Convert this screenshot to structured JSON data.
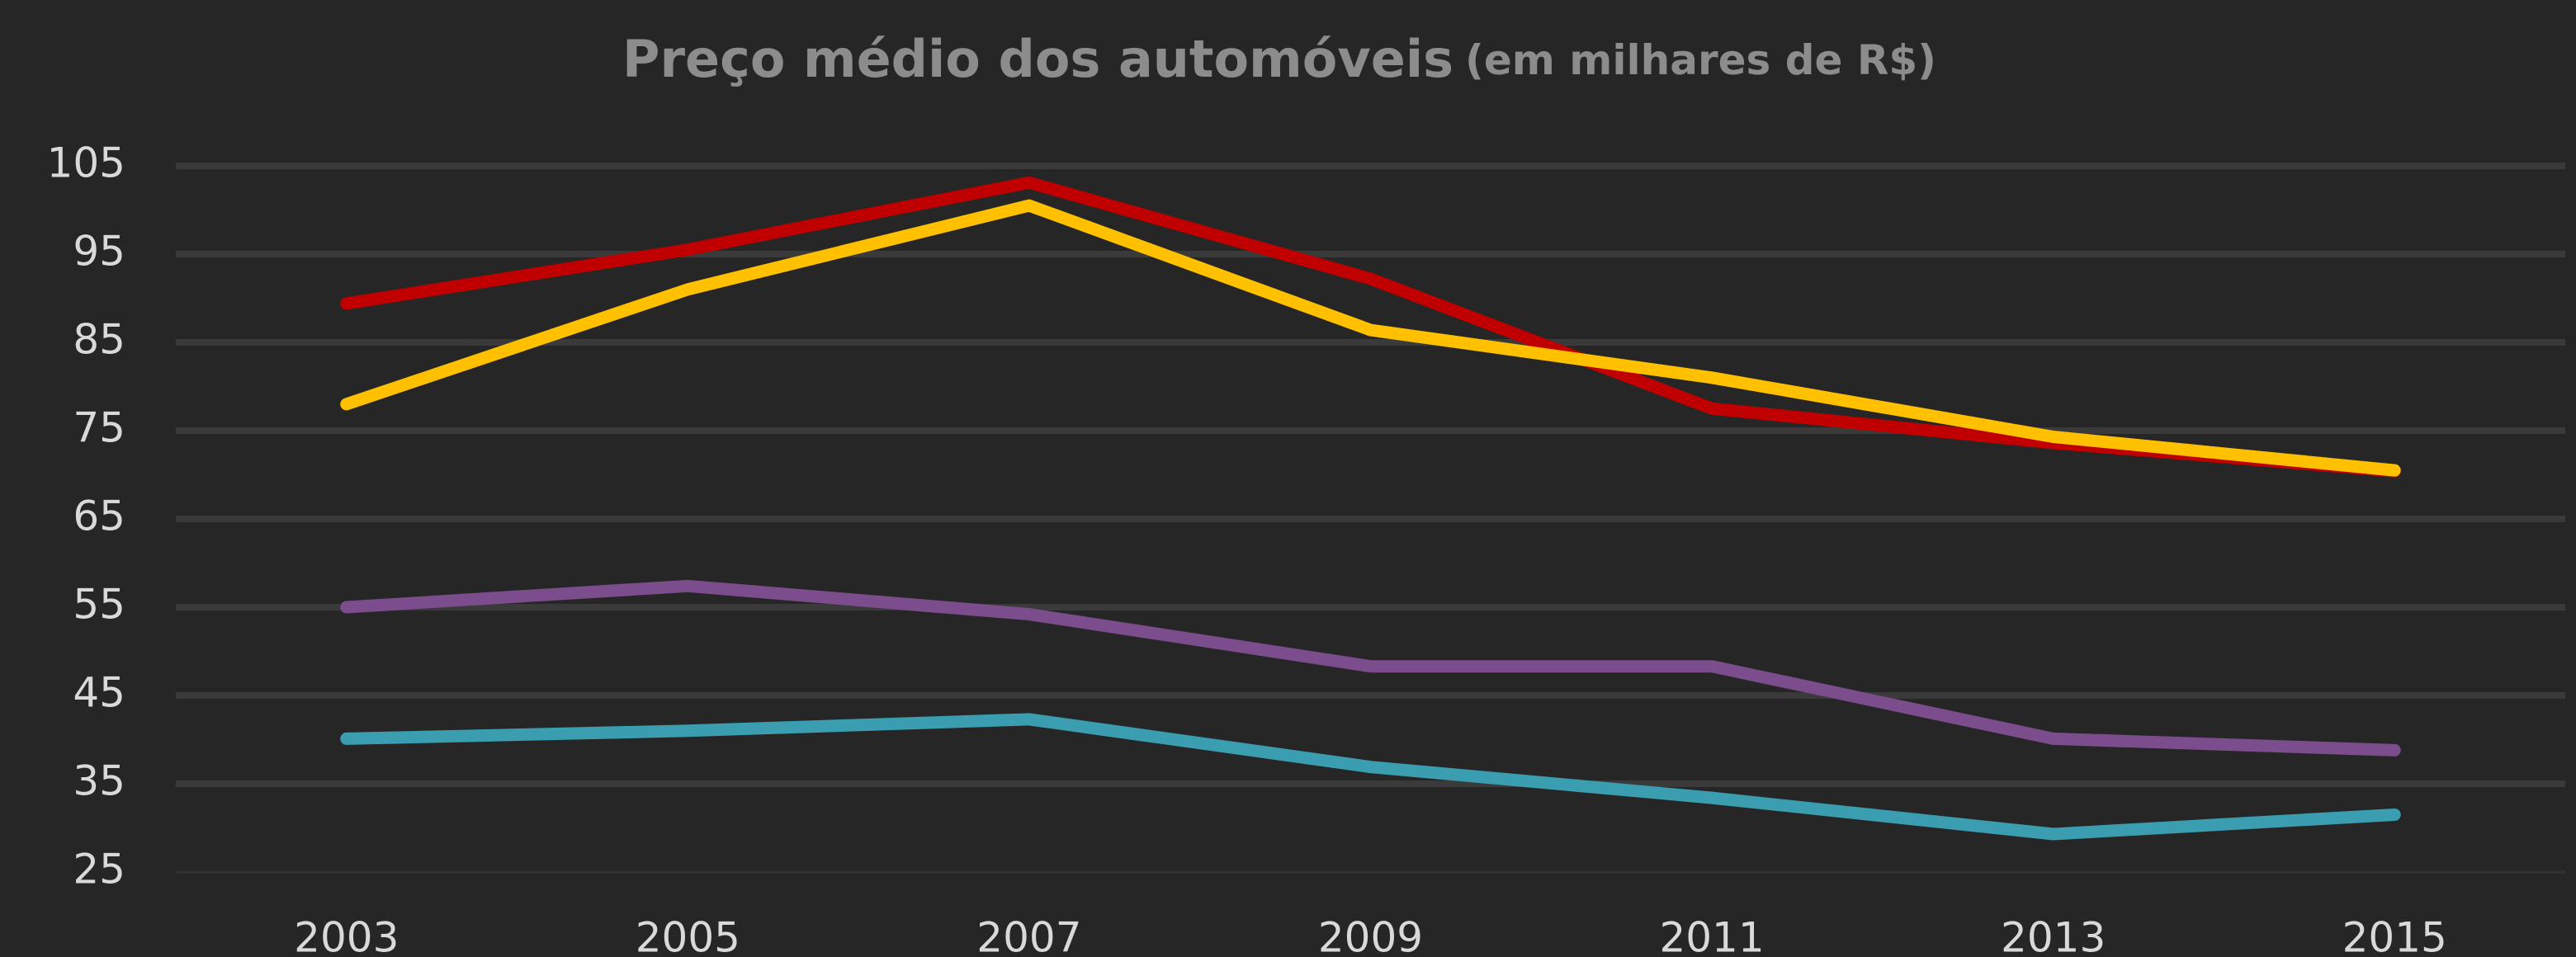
{
  "chart_data": {
    "type": "line",
    "title": "Preço médio dos automóveis",
    "subtitle": "(em milhares de R$)",
    "categories": [
      "2003",
      "2005",
      "2007",
      "2009",
      "2011",
      "2013",
      "2015"
    ],
    "series": [
      {
        "color": "#c00000",
        "values": [
          89.4,
          95.5,
          103.1,
          92.2,
          77.5,
          73.6,
          70.4
        ]
      },
      {
        "color": "#ffc000",
        "values": [
          78,
          91,
          100.5,
          86.4,
          81,
          74.3,
          70.5
        ]
      },
      {
        "color": "#7b4d8c",
        "values": [
          55,
          57.4,
          54.2,
          48.3,
          48.3,
          40.1,
          38.8
        ]
      },
      {
        "color": "#3a9db0",
        "values": [
          40.1,
          41,
          42.3,
          36.9,
          33.4,
          29.3,
          31.5
        ]
      }
    ],
    "ylim": [
      25,
      105
    ],
    "yticks": [
      25,
      35,
      45,
      55,
      65,
      75,
      85,
      95,
      105
    ],
    "grid": true
  }
}
